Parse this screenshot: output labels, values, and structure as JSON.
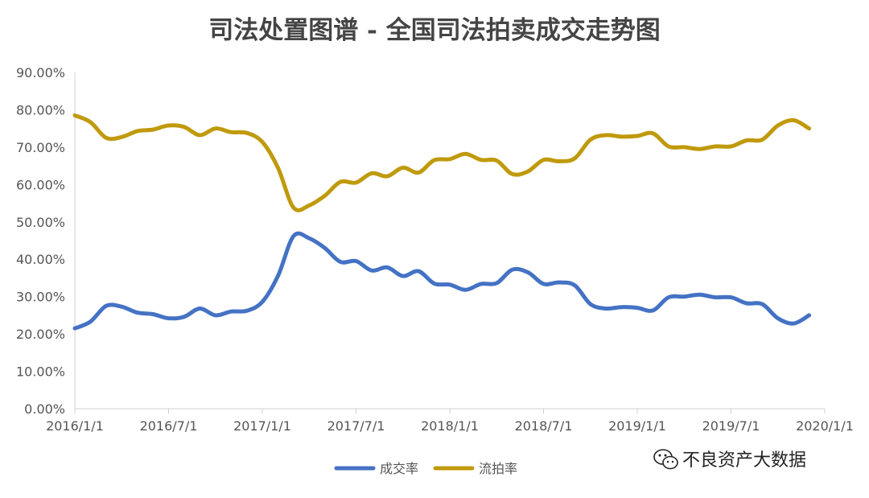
{
  "chart_data": {
    "type": "line",
    "title": "司法处置图谱 - 全国司法拍卖成交走势图",
    "xlabel": "",
    "ylabel": "",
    "x_ticks": [
      "2016/1/1",
      "2016/7/1",
      "2017/1/1",
      "2017/7/1",
      "2018/1/1",
      "2018/7/1",
      "2019/1/1",
      "2019/7/1",
      "2020/1/1"
    ],
    "y_ticks": [
      "0.00%",
      "10.00%",
      "20.00%",
      "30.00%",
      "40.00%",
      "50.00%",
      "60.00%",
      "70.00%",
      "80.00%",
      "90.00%"
    ],
    "ylim": [
      0,
      90
    ],
    "xlim": [
      "2016/1/1",
      "2020/1/1"
    ],
    "grid": false,
    "legend": "bottom",
    "x": [
      "2016-01",
      "2016-02",
      "2016-03",
      "2016-04",
      "2016-05",
      "2016-06",
      "2016-07",
      "2016-08",
      "2016-09",
      "2016-10",
      "2016-11",
      "2016-12",
      "2017-01",
      "2017-02",
      "2017-03",
      "2017-04",
      "2017-05",
      "2017-06",
      "2017-07",
      "2017-08",
      "2017-09",
      "2017-10",
      "2017-11",
      "2017-12",
      "2018-01",
      "2018-02",
      "2018-03",
      "2018-04",
      "2018-05",
      "2018-06",
      "2018-07",
      "2018-08",
      "2018-09",
      "2018-10",
      "2018-11",
      "2018-12",
      "2019-01",
      "2019-02",
      "2019-03",
      "2019-04",
      "2019-05",
      "2019-06",
      "2019-07",
      "2019-08",
      "2019-09",
      "2019-10",
      "2019-11",
      "2019-12"
    ],
    "series": [
      {
        "name": "成交率",
        "color": "#4472c4",
        "values": [
          21.5,
          23.3,
          27.5,
          27.3,
          25.7,
          25.3,
          24.2,
          24.6,
          26.8,
          25.0,
          26.0,
          26.2,
          28.6,
          35.5,
          46.2,
          45.6,
          43.0,
          39.3,
          39.5,
          37.0,
          37.8,
          35.5,
          36.8,
          33.5,
          33.2,
          31.8,
          33.4,
          33.6,
          37.2,
          36.5,
          33.4,
          33.8,
          33.0,
          28.0,
          26.8,
          27.2,
          27.0,
          26.3,
          29.8,
          30.0,
          30.5,
          29.8,
          29.8,
          28.2,
          28.0,
          24.2,
          22.8,
          25.0
        ]
      },
      {
        "name": "流拍率",
        "color": "#c09a0d",
        "values": [
          78.5,
          76.7,
          72.5,
          72.7,
          74.3,
          74.7,
          75.8,
          75.4,
          73.2,
          75.0,
          74.0,
          73.8,
          71.4,
          64.5,
          53.8,
          54.4,
          57.0,
          60.7,
          60.5,
          63.0,
          62.2,
          64.5,
          63.2,
          66.5,
          66.8,
          68.2,
          66.6,
          66.4,
          62.8,
          63.5,
          66.6,
          66.2,
          67.0,
          72.0,
          73.2,
          72.8,
          73.0,
          73.7,
          70.2,
          70.0,
          69.5,
          70.2,
          70.2,
          71.8,
          72.0,
          75.8,
          77.2,
          75.0
        ]
      }
    ]
  },
  "watermark": {
    "text": "不良资产大数据",
    "icon": "wechat-icon"
  }
}
